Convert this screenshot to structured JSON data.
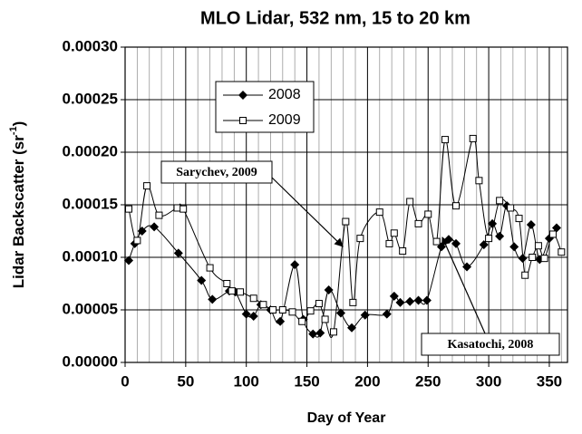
{
  "chart_data": {
    "type": "line",
    "title": "MLO Lidar, 532 nm, 15 to 20 km",
    "x_label": "Day of Year",
    "y_label": [
      "Lidar Backscatter (sr",
      "-1",
      ")"
    ],
    "xlim": [
      0,
      365
    ],
    "xticks": [
      0,
      50,
      100,
      150,
      200,
      250,
      300,
      350
    ],
    "x_minor_ticks": [
      10,
      20,
      30,
      40,
      60,
      70,
      80,
      90,
      110,
      120,
      130,
      140,
      160,
      170,
      180,
      190,
      210,
      220,
      230,
      240,
      260,
      270,
      280,
      290,
      310,
      320,
      330,
      340,
      360
    ],
    "ylim": [
      0,
      0.0003
    ],
    "yticks": [
      {
        "value": 0,
        "label": "0.00000"
      },
      {
        "value": 5e-05,
        "label": "0.00005"
      },
      {
        "value": 0.0001,
        "label": "0.00010"
      },
      {
        "value": 0.00015,
        "label": "0.00015"
      },
      {
        "value": 0.0002,
        "label": "0.00020"
      },
      {
        "value": 0.00025,
        "label": "0.00025"
      },
      {
        "value": 0.0003,
        "label": "0.00030"
      }
    ],
    "grid": true,
    "series": [
      {
        "name": "2008",
        "color": "#000000",
        "marker": "diamond",
        "x": [
          3,
          8,
          14,
          24,
          44,
          63,
          72,
          86,
          91,
          100,
          106,
          112,
          120,
          128,
          140,
          147,
          155,
          161,
          168,
          178,
          187,
          198,
          216,
          222,
          227,
          235,
          242,
          249,
          261,
          267,
          273,
          282,
          296,
          303,
          309,
          315,
          321,
          328,
          335,
          342,
          350,
          356
        ],
        "values": [
          9.7e-05,
          0.000113,
          0.000125,
          0.000129,
          0.000104,
          7.8e-05,
          6e-05,
          6.8e-05,
          6.7e-05,
          4.6e-05,
          4.4e-05,
          5.5e-05,
          5e-05,
          3.9e-05,
          9.3e-05,
          4.1e-05,
          2.7e-05,
          2.8e-05,
          6.9e-05,
          4.7e-05,
          3.3e-05,
          4.5e-05,
          4.6e-05,
          6.3e-05,
          5.7e-05,
          5.8e-05,
          5.9e-05,
          5.9e-05,
          0.00011,
          0.000117,
          0.000113,
          9.1e-05,
          0.000112,
          0.000132,
          0.00012,
          0.000149,
          0.00011,
          9.9e-05,
          0.000131,
          9.8e-05,
          0.000118,
          0.000128
        ]
      },
      {
        "name": "2009",
        "color": "#000000",
        "marker": "square",
        "x": [
          3,
          10,
          18,
          28,
          43,
          48,
          70,
          84,
          88,
          95,
          106,
          114,
          122,
          130,
          138,
          146,
          153,
          160,
          165,
          172,
          182,
          188,
          194,
          210,
          218,
          222,
          229,
          235,
          242,
          250,
          257,
          264,
          273,
          287,
          292,
          300,
          309,
          318,
          325,
          330,
          336,
          341,
          346,
          353,
          360
        ],
        "values": [
          0.000146,
          0.000116,
          0.000168,
          0.00014,
          0.000147,
          0.000146,
          9e-05,
          7.5e-05,
          6.8e-05,
          6.7e-05,
          6.1e-05,
          5.5e-05,
          5e-05,
          5e-05,
          4.8e-05,
          3.9e-05,
          4.9e-05,
          5.6e-05,
          4.1e-05,
          2.9e-05,
          0.000134,
          5.7e-05,
          0.000118,
          0.000143,
          0.000113,
          0.000123,
          0.000106,
          0.000153,
          0.000132,
          0.000141,
          0.000115,
          0.000212,
          0.000149,
          0.000213,
          0.000173,
          0.000118,
          0.000154,
          0.000147,
          0.000137,
          8.3e-05,
          0.0001,
          0.000111,
          9.9e-05,
          0.000122,
          0.000105
        ]
      }
    ],
    "annotations": [
      {
        "text": "Sarychev, 2009"
      },
      {
        "text": "Kasatochi, 2008"
      }
    ]
  }
}
